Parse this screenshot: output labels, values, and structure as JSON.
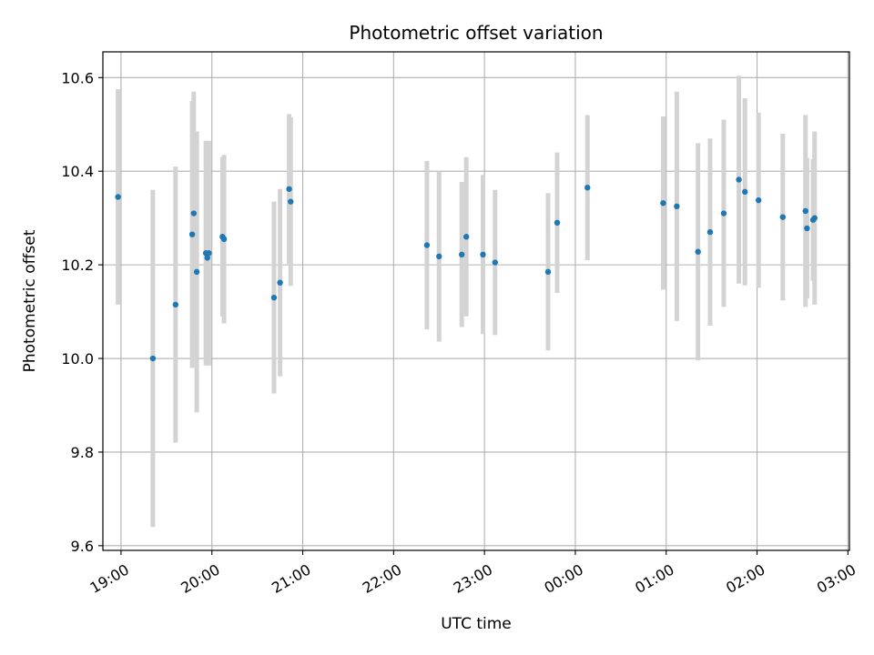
{
  "chart_data": {
    "type": "scatter",
    "title": "Photometric offset variation",
    "xlabel": "UTC time",
    "ylabel": "Photometric offset",
    "grid": true,
    "xlim": [
      "18:48",
      "03:01"
    ],
    "ylim": [
      9.59,
      10.655
    ],
    "x_ticks": [
      "19:00",
      "20:00",
      "21:00",
      "22:00",
      "23:00",
      "00:00",
      "01:00",
      "02:00",
      "03:00"
    ],
    "y_ticks": [
      9.6,
      9.8,
      10.0,
      10.2,
      10.4,
      10.6
    ],
    "y_tick_labels": [
      "9.6",
      "9.8",
      "10.0",
      "10.2",
      "10.4",
      "10.6"
    ],
    "colors": {
      "point": "#1f77b4",
      "errorbar": "#d3d3d3",
      "grid": "#b0b0b0"
    },
    "series": [
      {
        "x": [
          "18:58",
          "19:21",
          "19:36",
          "19:47",
          "19:48",
          "19:50",
          "19:56",
          "19:57",
          "19:58",
          "20:07",
          "20:08",
          "20:41",
          "20:45",
          "20:51",
          "20:52",
          "22:22",
          "22:30",
          "22:45",
          "22:48",
          "22:59",
          "23:07",
          "23:42",
          "23:48",
          "00:08",
          "00:58",
          "01:07",
          "01:21",
          "01:29",
          "01:38",
          "01:48",
          "01:52",
          "02:01",
          "02:17",
          "02:32",
          "02:33",
          "02:37",
          "02:38"
        ],
        "y": [
          10.345,
          10.0,
          10.115,
          10.265,
          10.31,
          10.185,
          10.225,
          10.215,
          10.225,
          10.26,
          10.255,
          10.13,
          10.162,
          10.362,
          10.335,
          10.242,
          10.218,
          10.222,
          10.26,
          10.222,
          10.205,
          10.185,
          10.29,
          10.365,
          10.332,
          10.325,
          10.228,
          10.27,
          10.31,
          10.382,
          10.356,
          10.338,
          10.302,
          10.315,
          10.278,
          10.296,
          10.3
        ],
        "yerr": [
          0.23,
          0.36,
          0.295,
          0.285,
          0.26,
          0.3,
          0.24,
          0.2,
          0.24,
          0.17,
          0.18,
          0.205,
          0.2,
          0.16,
          0.18,
          0.18,
          0.182,
          0.155,
          0.17,
          0.17,
          0.155,
          0.168,
          0.15,
          0.155,
          0.185,
          0.245,
          0.232,
          0.2,
          0.2,
          0.222,
          0.2,
          0.187,
          0.178,
          0.205,
          0.15,
          0.13,
          0.185
        ]
      }
    ]
  }
}
